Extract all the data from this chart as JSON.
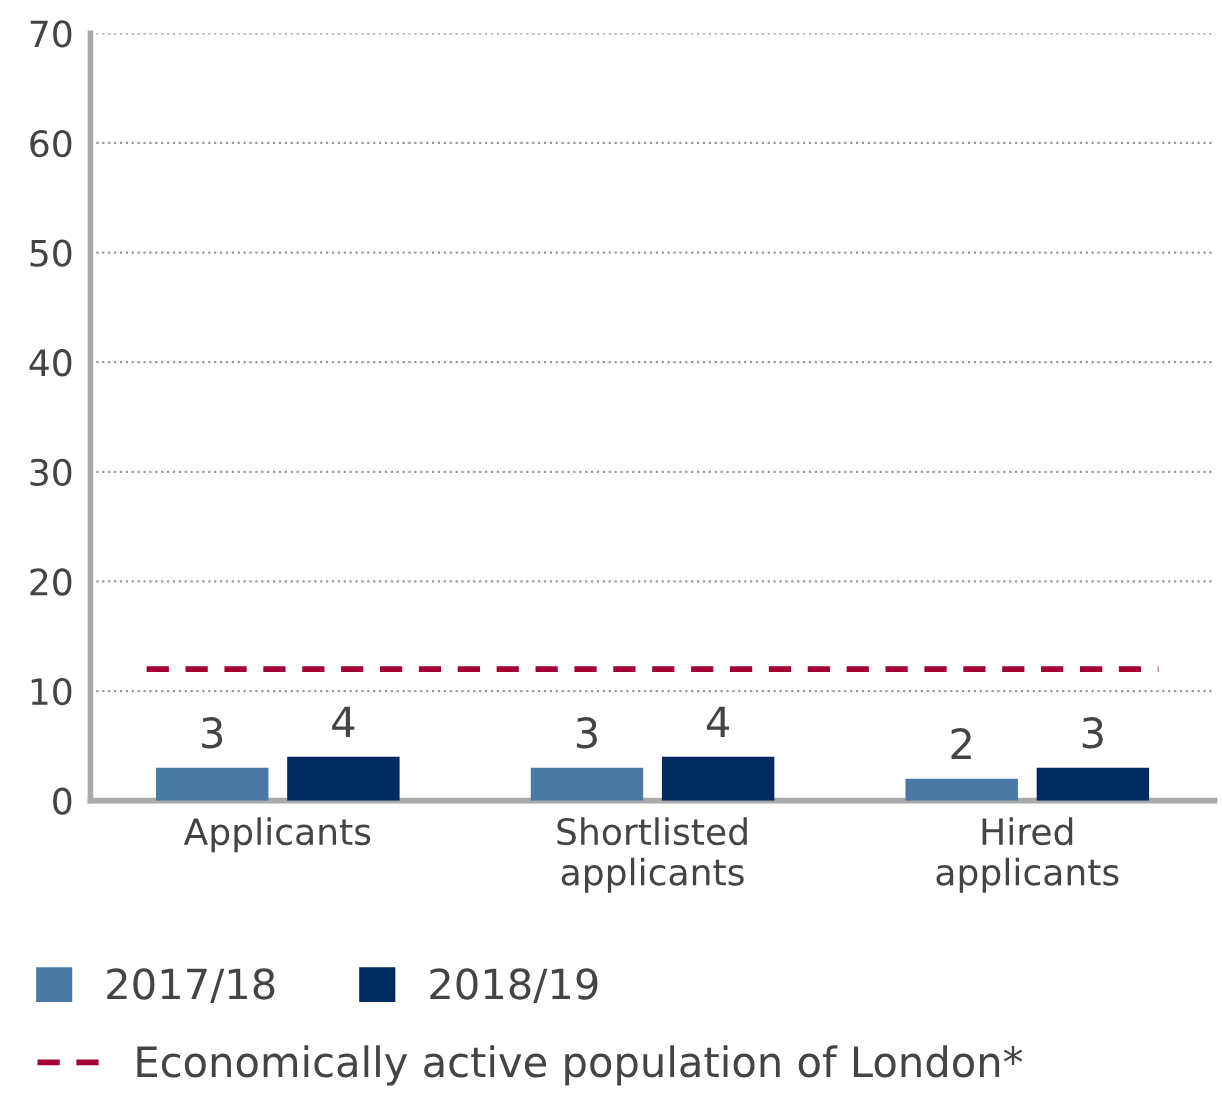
{
  "chart_data": {
    "type": "bar",
    "categories": [
      "Applicants",
      "Shortlisted\napplicants",
      "Hired\napplicants"
    ],
    "series": [
      {
        "name": "2017/18",
        "color": "#4a79a5",
        "values": [
          3,
          3,
          2
        ]
      },
      {
        "name": "2018/19",
        "color": "#002b5f",
        "values": [
          4,
          4,
          3
        ]
      }
    ],
    "ylim": [
      0,
      70
    ],
    "yticks": [
      0,
      10,
      20,
      30,
      40,
      50,
      60,
      70
    ],
    "grid": "y",
    "data_labels": true,
    "legend": "bottom",
    "ref_lines": [
      {
        "axis": "y",
        "value": 12,
        "label": "Economically active population of London*",
        "color": "#a50034",
        "line_style": "dashed"
      }
    ]
  }
}
